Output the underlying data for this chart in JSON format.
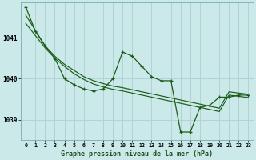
{
  "title": "Graphe pression niveau de la mer (hPa)",
  "bg_color": "#cce9e9",
  "plot_bg_color": "#cce9e9",
  "grid_color": "#b0d4d4",
  "line_color": "#1a5c1a",
  "xlim": [
    -0.5,
    23.5
  ],
  "ylim": [
    1038.5,
    1041.85
  ],
  "yticks": [
    1039,
    1040,
    1041
  ],
  "xticks": [
    0,
    1,
    2,
    3,
    4,
    5,
    6,
    7,
    8,
    9,
    10,
    11,
    12,
    13,
    14,
    15,
    16,
    17,
    18,
    19,
    20,
    21,
    22,
    23
  ],
  "main_line_x": [
    0,
    1,
    2,
    3,
    4,
    5,
    6,
    7,
    8,
    9,
    10,
    11,
    12,
    13,
    14,
    15,
    16,
    17,
    18,
    19,
    20,
    21,
    22,
    23
  ],
  "main_line_y": [
    1041.75,
    1041.15,
    1040.8,
    1040.5,
    1040.0,
    1039.85,
    1039.75,
    1039.7,
    1039.75,
    1040.0,
    1040.65,
    1040.55,
    1040.3,
    1040.05,
    1039.95,
    1039.95,
    1038.7,
    1038.7,
    1039.3,
    1039.35,
    1039.55,
    1039.55,
    1039.6,
    1039.6
  ],
  "smooth_line1_x": [
    0,
    2,
    3,
    4,
    5,
    6,
    7,
    8,
    9,
    10,
    11,
    12,
    13,
    14,
    15,
    16,
    17,
    18,
    19,
    20,
    21,
    22,
    23
  ],
  "smooth_line1_y": [
    1041.55,
    1040.8,
    1040.55,
    1040.35,
    1040.2,
    1040.05,
    1039.95,
    1039.88,
    1039.82,
    1039.78,
    1039.73,
    1039.68,
    1039.63,
    1039.58,
    1039.53,
    1039.48,
    1039.43,
    1039.38,
    1039.33,
    1039.28,
    1039.68,
    1039.65,
    1039.62
  ],
  "smooth_line2_x": [
    0,
    2,
    3,
    4,
    5,
    6,
    7,
    8,
    9,
    10,
    11,
    12,
    13,
    14,
    15,
    16,
    17,
    18,
    19,
    20,
    21,
    22,
    23
  ],
  "smooth_line2_y": [
    1041.35,
    1040.75,
    1040.5,
    1040.3,
    1040.12,
    1039.98,
    1039.87,
    1039.8,
    1039.74,
    1039.7,
    1039.65,
    1039.6,
    1039.55,
    1039.5,
    1039.45,
    1039.4,
    1039.35,
    1039.3,
    1039.25,
    1039.2,
    1039.6,
    1039.57,
    1039.54
  ]
}
